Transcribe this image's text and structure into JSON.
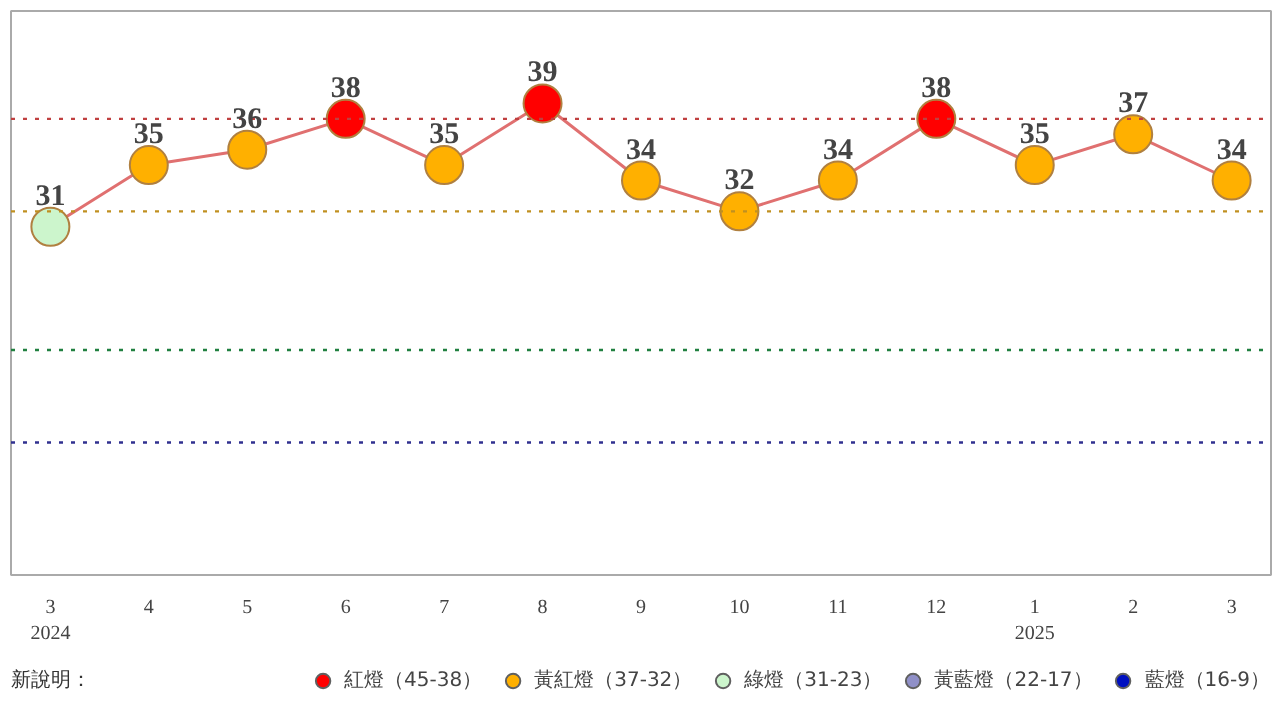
{
  "chart_data": {
    "type": "line",
    "categories": [
      "3\n2024",
      "4",
      "5",
      "6",
      "7",
      "8",
      "9",
      "10",
      "11",
      "12",
      "1\n2025",
      "2",
      "3"
    ],
    "ylim": [
      8.4,
      45
    ],
    "tick_labels": "x",
    "grid": false,
    "legend": "bottom",
    "legend_title": "新說明：",
    "series": [
      {
        "color": "#e07070",
        "values": [
          31,
          35,
          36,
          38,
          35,
          39,
          34,
          32,
          34,
          38,
          35,
          37,
          34
        ]
      },
      {
        "type": "scatter",
        "name": "紅燈（45-38）",
        "color": "#ff0000",
        "values": [
          null,
          null,
          null,
          38,
          null,
          39,
          null,
          null,
          null,
          38,
          null,
          null,
          null
        ],
        "value_labels": [
          null,
          null,
          null,
          "38",
          null,
          "39",
          null,
          null,
          null,
          "38",
          null,
          null,
          null
        ]
      },
      {
        "type": "scatter",
        "name": "黃紅燈（37-32）",
        "color": "#ffb000",
        "values": [
          null,
          35,
          36,
          null,
          35,
          null,
          34,
          32,
          34,
          null,
          35,
          37,
          34
        ],
        "value_labels": [
          null,
          "35",
          "36",
          null,
          "35",
          null,
          "34",
          "32",
          "34",
          null,
          "35",
          "37",
          "34"
        ]
      },
      {
        "type": "scatter",
        "name": "綠燈（31-23）",
        "color": "#ccf5cc",
        "values": [
          31,
          null,
          null,
          null,
          null,
          null,
          null,
          null,
          null,
          null,
          null,
          null,
          null
        ],
        "value_labels": [
          "31",
          null,
          null,
          null,
          null,
          null,
          null,
          null,
          null,
          null,
          null,
          null,
          null
        ]
      },
      {
        "type": "scatter",
        "name": "黃藍燈（22-17）",
        "color": "#9090c8",
        "values": [
          null,
          null,
          null,
          null,
          null,
          null,
          null,
          null,
          null,
          null,
          null,
          null,
          null
        ]
      },
      {
        "type": "scatter",
        "name": "藍燈（16-9）",
        "color": "#0010c0",
        "values": [
          null,
          null,
          null,
          null,
          null,
          null,
          null,
          null,
          null,
          null,
          null,
          null,
          null
        ]
      }
    ],
    "ref_lines": [
      {
        "axis": "y",
        "value": 38,
        "color": "#c04040",
        "line_style": "dotted"
      },
      {
        "axis": "y",
        "value": 32,
        "color": "#c09020",
        "line_style": "dotted"
      },
      {
        "axis": "y",
        "value": 23,
        "color": "#208040",
        "line_style": "dotted"
      },
      {
        "axis": "y",
        "value": 17,
        "color": "#303090",
        "line_style": "dotted"
      }
    ]
  }
}
